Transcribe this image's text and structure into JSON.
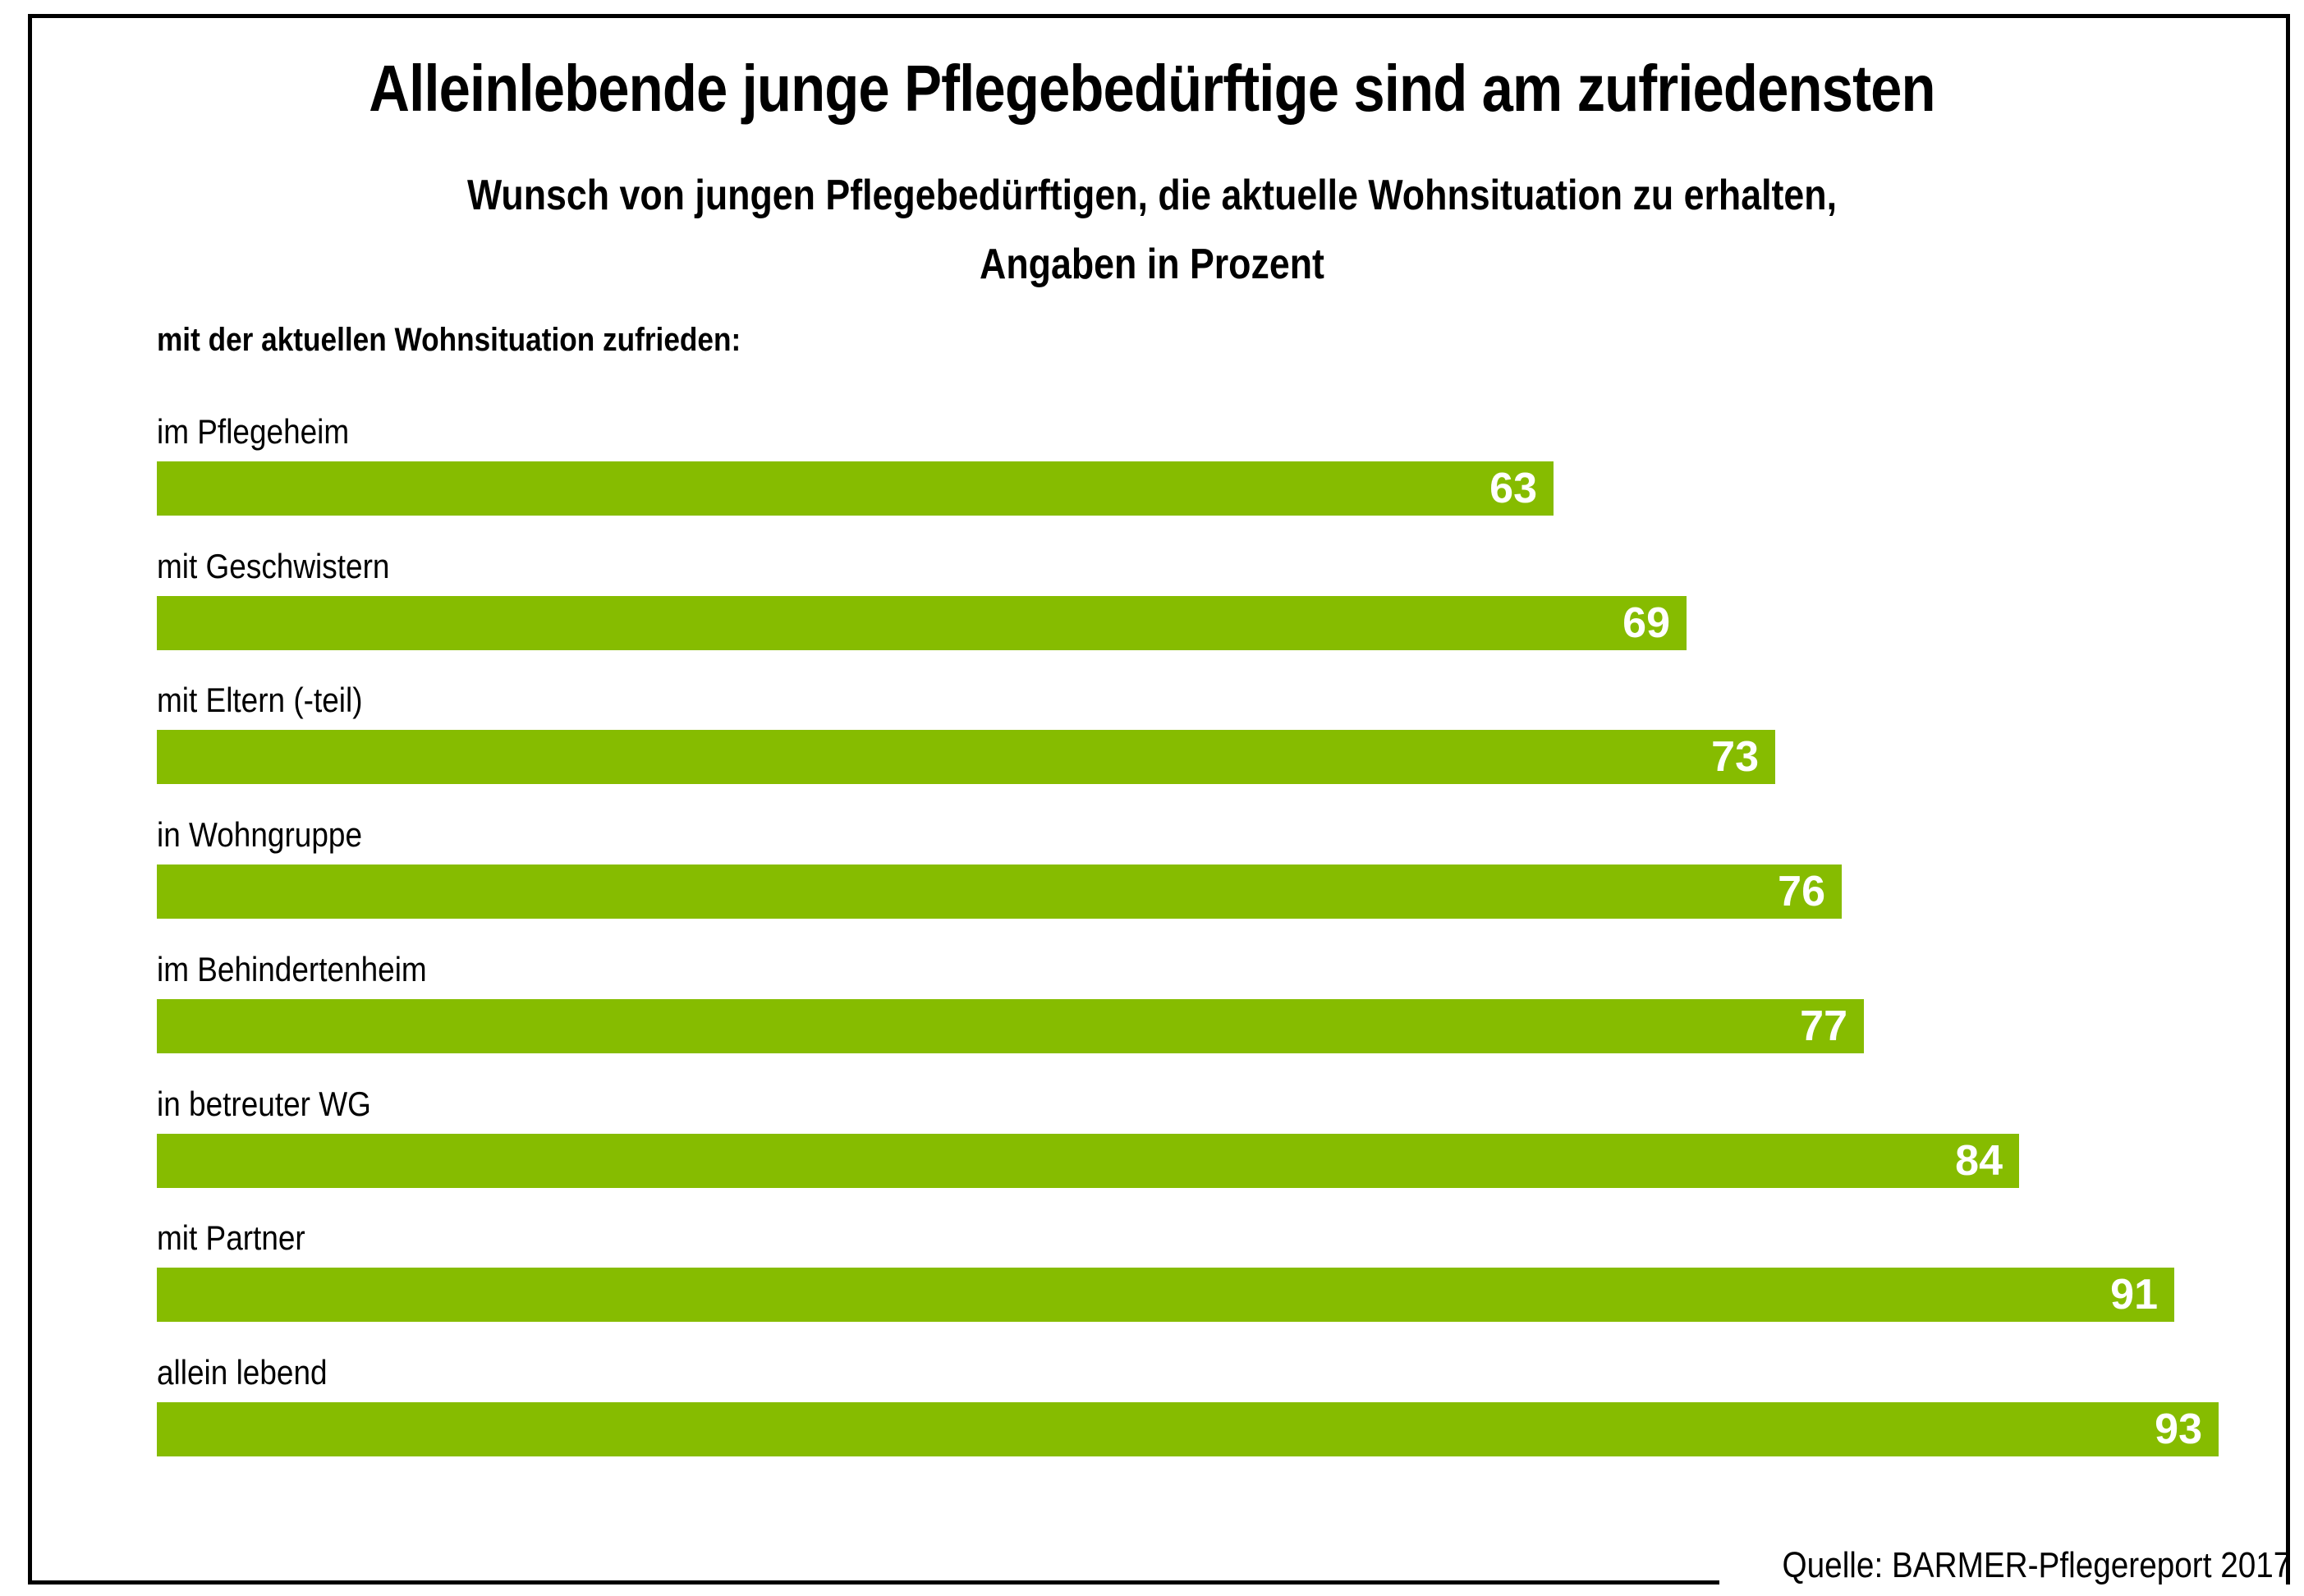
{
  "header": {
    "title": "Alleinlebende junge Pflegebedürftige sind am zufriedensten",
    "subtitle_line1": "Wunsch von jungen Pflegebedürftigen, die aktuelle Wohnsituation zu erhalten,",
    "subtitle_line2": "Angaben in Prozent"
  },
  "section_label": "mit der aktuellen Wohnsituation zufrieden:",
  "footer": {
    "source": "Quelle: BARMER-Pflegereport 2017"
  },
  "colors": {
    "bar": "#86bc00",
    "value_text": "#ffffff",
    "text": "#000000"
  },
  "chart_data": {
    "type": "bar",
    "orientation": "horizontal",
    "title": "Alleinlebende junge Pflegebedürftige sind am zufriedensten",
    "subtitle": "Wunsch von jungen Pflegebedürftigen, die aktuelle Wohnsituation zu erhalten, Angaben in Prozent",
    "xlabel": "",
    "ylabel": "mit der aktuellen Wohnsituation zufrieden:",
    "unit": "%",
    "xlim": [
      0,
      100
    ],
    "grid": false,
    "legend": "none",
    "categories": [
      "im Pflegeheim",
      "mit Geschwistern",
      "mit Eltern (-teil)",
      "in Wohngruppe",
      "im Behindertenheim",
      "in betreuter WG",
      "mit Partner",
      "allein lebend"
    ],
    "values": [
      63,
      69,
      73,
      76,
      77,
      84,
      91,
      93
    ],
    "data_labels": [
      "63",
      "69",
      "73",
      "76",
      "77",
      "84",
      "91",
      "93"
    ]
  }
}
